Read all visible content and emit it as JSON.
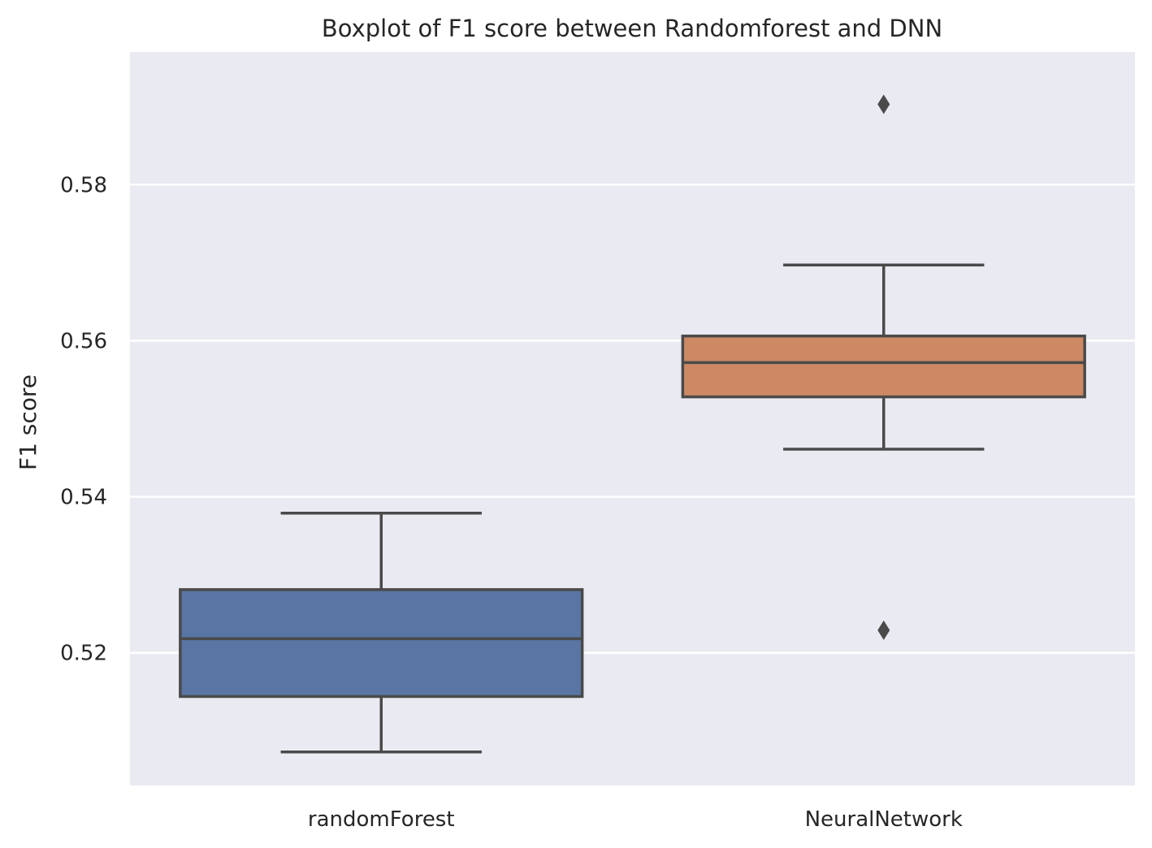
{
  "chart_data": {
    "type": "box",
    "title": "Boxplot of F1 score between Randomforest and DNN",
    "xlabel": "",
    "ylabel": "F1 score",
    "ylim": [
      0.503,
      0.597
    ],
    "yticks": [
      0.52,
      0.54,
      0.56,
      0.58
    ],
    "ytick_labels": [
      "0.52",
      "0.54",
      "0.56",
      "0.58"
    ],
    "grid": true,
    "colors": {
      "background": "#eaeaf2",
      "grid": "#ffffff",
      "line": "#4a4a4a"
    },
    "categories": [
      "randomForest",
      "NeuralNetwork"
    ],
    "boxes": [
      {
        "category": "randomForest",
        "whisker_low": 0.5073,
        "q1": 0.5144,
        "median": 0.5218,
        "q3": 0.5281,
        "whisker_high": 0.5379,
        "outliers": [],
        "color": "#5975a4"
      },
      {
        "category": "NeuralNetwork",
        "whisker_low": 0.5461,
        "q1": 0.5528,
        "median": 0.5572,
        "q3": 0.5606,
        "whisker_high": 0.5697,
        "outliers": [
          0.5903,
          0.5229
        ],
        "color": "#cc8963"
      }
    ]
  }
}
